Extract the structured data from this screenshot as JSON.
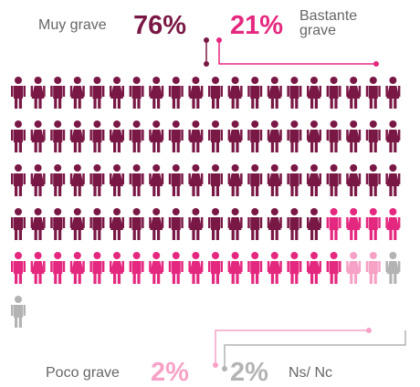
{
  "chart_data": {
    "type": "pictogram",
    "series": [
      {
        "name": "Muy grave",
        "color": "#7a1845",
        "values": [
          76
        ],
        "value_labels": [
          "76%"
        ]
      },
      {
        "name": "Bastante grave",
        "color": "#e5287f",
        "values": [
          21
        ],
        "value_labels": [
          "21%"
        ]
      },
      {
        "name": "Poco grave",
        "color": "#f6a2c6",
        "values": [
          2
        ],
        "value_labels": [
          "2%"
        ]
      },
      {
        "name": "Ns/ Nc",
        "color": "#b3b3b3",
        "values": [
          2
        ],
        "value_labels": [
          "2%"
        ]
      }
    ]
  }
}
